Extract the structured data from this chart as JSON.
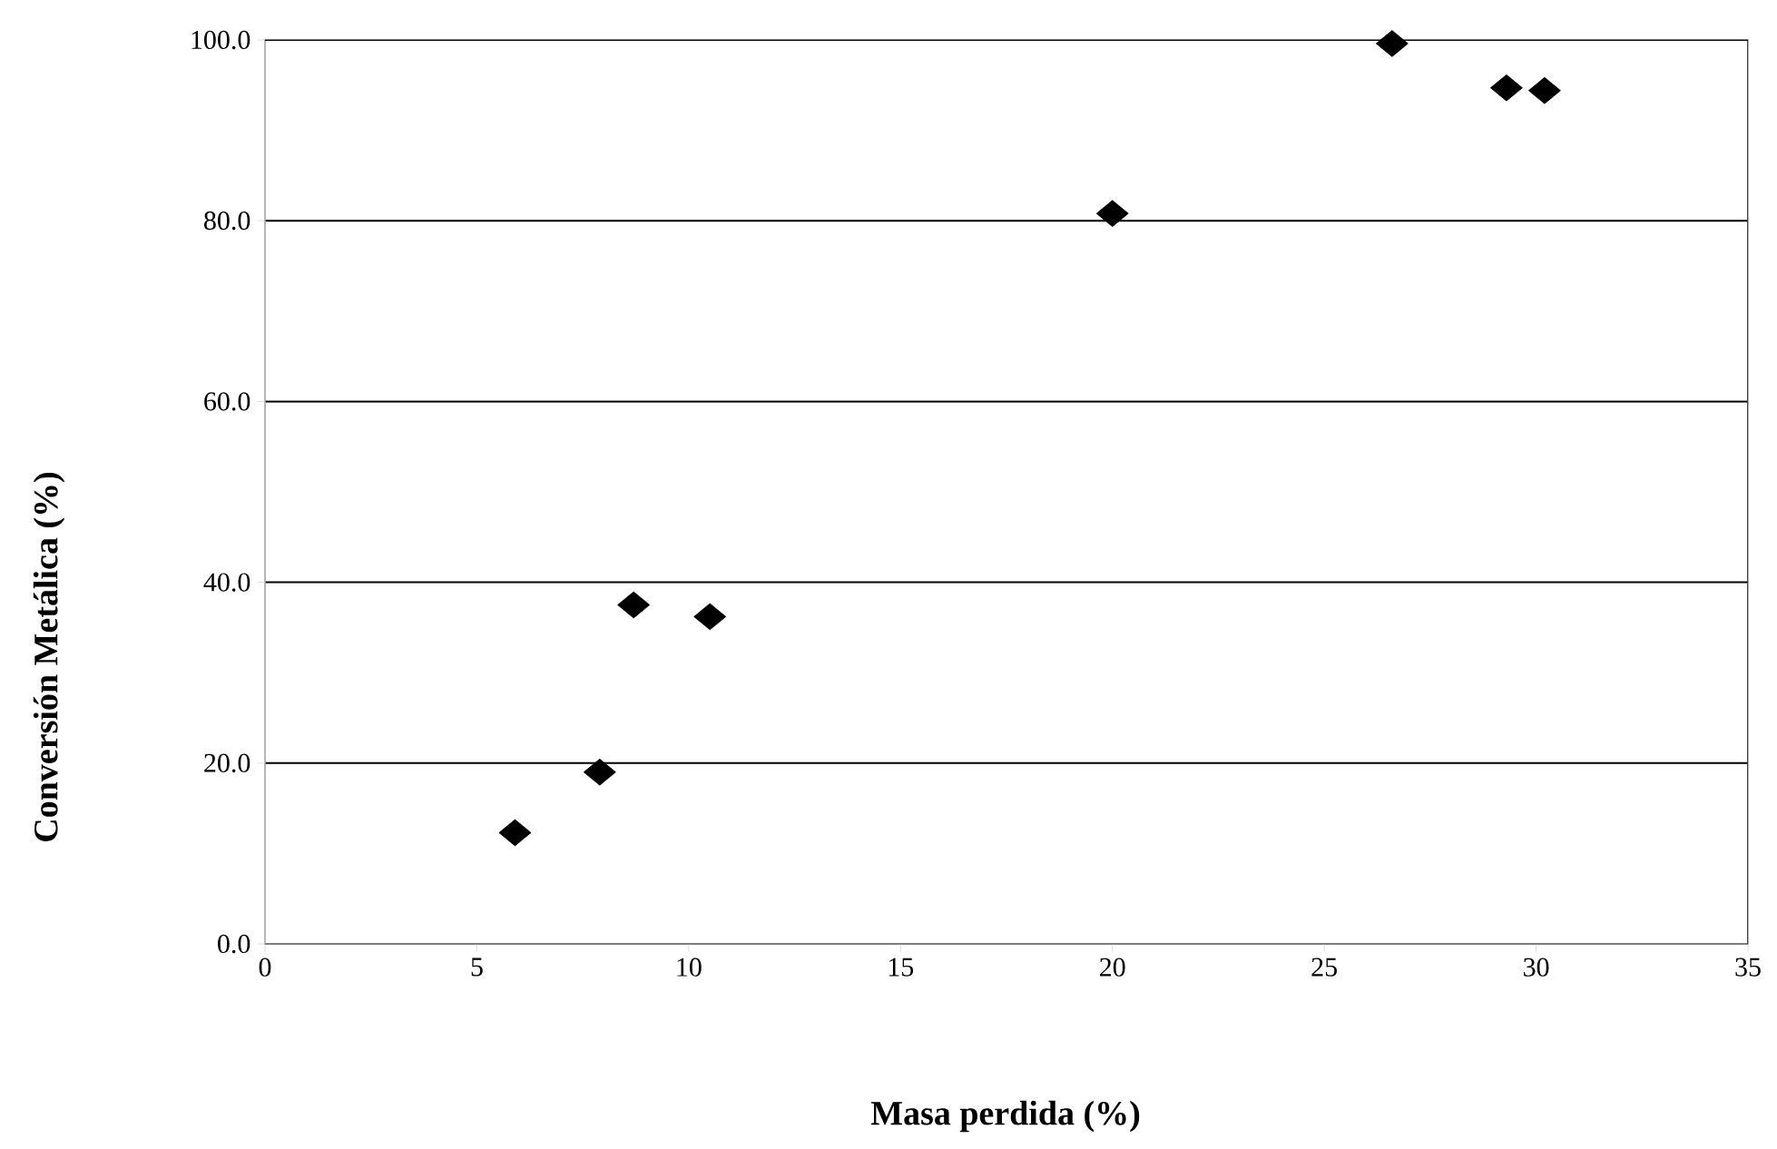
{
  "chart_data": {
    "type": "scatter",
    "xlabel": "Masa perdida  (%)",
    "ylabel": "Conversión Metálica (%)",
    "x": [
      5.9,
      7.9,
      8.7,
      10.5,
      20.0,
      26.6,
      29.3,
      30.2
    ],
    "series": [
      {
        "color": "#000000",
        "values": [
          12.3,
          19.0,
          37.5,
          36.2,
          80.8,
          99.6,
          94.7,
          94.4
        ]
      }
    ],
    "xlim": [
      0,
      35
    ],
    "xticks": [
      0,
      5,
      10,
      15,
      20,
      25,
      30,
      35
    ],
    "ylim": [
      0,
      100
    ],
    "yticks": [
      {
        "value": 0,
        "label": "0.0"
      },
      {
        "value": 20,
        "label": "20.0"
      },
      {
        "value": 40,
        "label": "40.0"
      },
      {
        "value": 60,
        "label": "60.0"
      },
      {
        "value": 80,
        "label": "80.0"
      },
      {
        "value": 100,
        "label": "100.0"
      }
    ],
    "grid": "y",
    "marker": "diamond"
  }
}
